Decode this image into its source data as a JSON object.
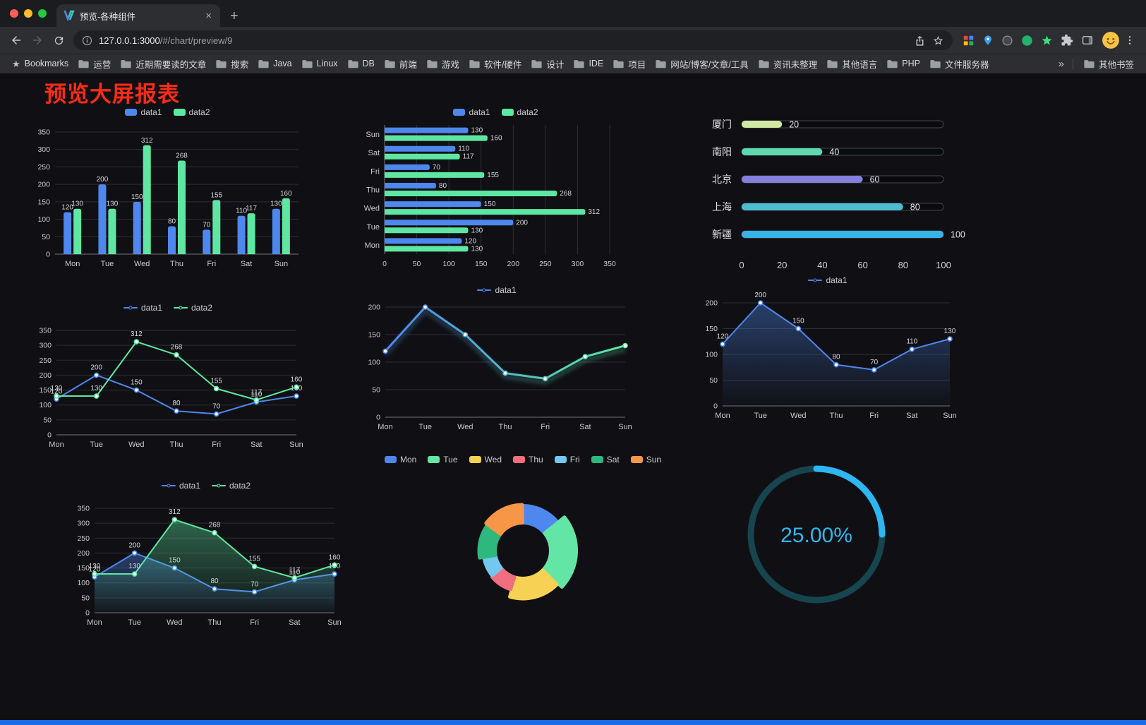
{
  "chrome": {
    "traffic_lights": [
      "#ff5f57",
      "#febc2e",
      "#28c840"
    ],
    "tab": {
      "title": "预览-各种组件",
      "close_glyph": "×",
      "new_tab_glyph": "+"
    },
    "address": {
      "url_host": "127.0.0.1:3000",
      "url_path": "/#/chart/preview/9"
    },
    "bookmarks_bar": {
      "first_item": "Bookmarks",
      "folders": [
        "运营",
        "近期需要读的文章",
        "搜索",
        "Java",
        "Linux",
        "DB",
        "前端",
        "游戏",
        "软件/硬件",
        "设计",
        "IDE",
        "项目",
        "网站/博客/文章/工具",
        "资讯未整理",
        "其他语言",
        "PHP",
        "文件服务器"
      ],
      "overflow_glyph": "»",
      "other_bookmarks": "其他书签"
    }
  },
  "page": {
    "title": "预览大屏报表",
    "title_color": "#fb2b16",
    "background": "#101014",
    "footer_color": "#1a6be8",
    "accent_blue": "#4e87ee",
    "accent_green": "#5de7a2"
  },
  "chart_data": [
    {
      "type": "bar",
      "legend": [
        "data1",
        "data2"
      ],
      "legend_position": "top",
      "grid": true,
      "categories": [
        "Mon",
        "Tue",
        "Wed",
        "Thu",
        "Fri",
        "Sat",
        "Sun"
      ],
      "series": [
        {
          "name": "data1",
          "color": "#4e87ee",
          "values": [
            120,
            200,
            150,
            80,
            70,
            110,
            130
          ]
        },
        {
          "name": "data2",
          "color": "#5de7a2",
          "values": [
            130,
            130,
            312,
            268,
            155,
            117,
            160
          ]
        }
      ],
      "ylim": [
        0,
        350
      ],
      "ytick": 50
    },
    {
      "type": "hbar",
      "legend": [
        "data1",
        "data2"
      ],
      "legend_position": "top",
      "grid": true,
      "categories": [
        "Mon",
        "Tue",
        "Wed",
        "Thu",
        "Fri",
        "Sat",
        "Sun"
      ],
      "series": [
        {
          "name": "data1",
          "color": "#4e87ee",
          "values": [
            120,
            200,
            150,
            80,
            70,
            110,
            130
          ]
        },
        {
          "name": "data2",
          "color": "#5de7a2",
          "values": [
            130,
            130,
            312,
            268,
            155,
            117,
            160
          ]
        }
      ],
      "xlim": [
        0,
        350
      ],
      "xtick": 50
    },
    {
      "type": "progress-list",
      "max": 100,
      "xticks": [
        0,
        20,
        40,
        60,
        80,
        100
      ],
      "items": [
        {
          "label": "厦门",
          "value": 20,
          "color": "#cfe9a2"
        },
        {
          "label": "南阳",
          "value": 40,
          "color": "#5fd8b0"
        },
        {
          "label": "北京",
          "value": 60,
          "color": "#8480dd"
        },
        {
          "label": "上海",
          "value": 80,
          "color": "#4cbdd0"
        },
        {
          "label": "新疆",
          "value": 100,
          "color": "#38b3e6"
        }
      ]
    },
    {
      "type": "line",
      "legend": [
        "data1",
        "data2"
      ],
      "legend_position": "top",
      "grid": true,
      "categories": [
        "Mon",
        "Tue",
        "Wed",
        "Thu",
        "Fri",
        "Sat",
        "Sun"
      ],
      "series": [
        {
          "name": "data1",
          "color": "#4e87ee",
          "values": [
            120,
            200,
            150,
            80,
            70,
            110,
            130
          ]
        },
        {
          "name": "data2",
          "color": "#5de7a2",
          "values": [
            130,
            130,
            312,
            268,
            155,
            117,
            160
          ]
        }
      ],
      "ylim": [
        0,
        350
      ],
      "ytick": 50,
      "labels": true,
      "markers": true
    },
    {
      "type": "line",
      "legend": [
        "data1"
      ],
      "legend_position": "top",
      "grid": true,
      "glow": true,
      "categories": [
        "Mon",
        "Tue",
        "Wed",
        "Thu",
        "Fri",
        "Sat",
        "Sun"
      ],
      "series": [
        {
          "name": "data1",
          "gradient": [
            "#4e87ee",
            "#5de7a2"
          ],
          "width": 3,
          "values": [
            120,
            200,
            150,
            80,
            70,
            110,
            130
          ]
        }
      ],
      "ylim": [
        0,
        200
      ],
      "ytick": 50,
      "labels": false,
      "markers": true
    },
    {
      "type": "line",
      "legend": [
        "data1"
      ],
      "legend_position": "top",
      "grid": true,
      "categories": [
        "Mon",
        "Tue",
        "Wed",
        "Thu",
        "Fri",
        "Sat",
        "Sun"
      ],
      "series": [
        {
          "name": "data1",
          "color": "#4e87ee",
          "area": true,
          "values": [
            120,
            200,
            150,
            80,
            70,
            110,
            130
          ]
        }
      ],
      "ylim": [
        0,
        200
      ],
      "ytick": 50,
      "labels": true,
      "markers": true
    },
    {
      "type": "line",
      "legend": [
        "data1",
        "data2"
      ],
      "legend_position": "top",
      "grid": true,
      "categories": [
        "Mon",
        "Tue",
        "Wed",
        "Thu",
        "Fri",
        "Sat",
        "Sun"
      ],
      "series": [
        {
          "name": "data1",
          "color": "#4e87ee",
          "area": true,
          "values": [
            120,
            200,
            150,
            80,
            70,
            110,
            130
          ]
        },
        {
          "name": "data2",
          "color": "#5de7a2",
          "area": true,
          "values": [
            130,
            130,
            312,
            268,
            155,
            117,
            160
          ]
        }
      ],
      "ylim": [
        0,
        350
      ],
      "ytick": 50,
      "labels": true,
      "markers": true
    },
    {
      "type": "pie",
      "rose": true,
      "inner_radius_ratio": 0.5,
      "legend_position": "top",
      "legend": [
        "Mon",
        "Tue",
        "Wed",
        "Thu",
        "Fri",
        "Sat",
        "Sun"
      ],
      "categories": [
        "Mon",
        "Tue",
        "Wed",
        "Thu",
        "Fri",
        "Sat",
        "Sun"
      ],
      "values": [
        120,
        200,
        150,
        80,
        70,
        110,
        130
      ],
      "colors": [
        "#4e87ee",
        "#63e6a5",
        "#f7d154",
        "#f06e7e",
        "#72c8f0",
        "#2eb87e",
        "#f79646"
      ]
    },
    {
      "type": "ring",
      "value": 25,
      "label": "25.00%",
      "color": "#2db7f2",
      "track_color": "#16454f"
    }
  ]
}
